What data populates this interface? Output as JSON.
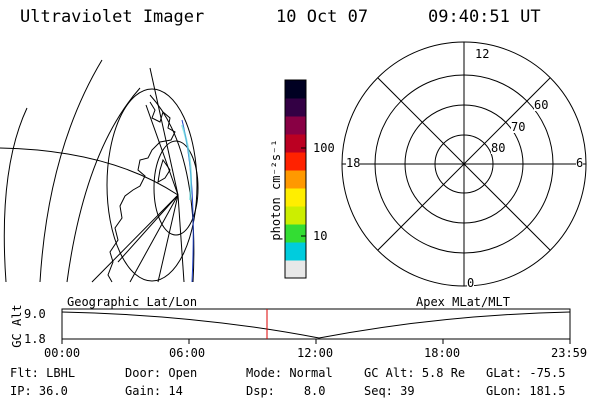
{
  "header": {
    "title": "Ultraviolet Imager",
    "date": "10 Oct 07",
    "time": "09:40:51 UT"
  },
  "colorbar": {
    "unit_label": "photon cm⁻²s⁻¹",
    "tick_labels": [
      "100",
      "10"
    ],
    "tick_values": [
      100,
      10
    ],
    "colors": [
      "#e8e8e8",
      "#00ccdd",
      "#33dd33",
      "#ccee00",
      "#ffee00",
      "#ff9900",
      "#ff2200",
      "#bb0022",
      "#880044",
      "#330044",
      "#000022"
    ]
  },
  "polar_plot": {
    "mlt_labels": {
      "top": "12",
      "left": "18",
      "right": "6",
      "bottom": "0"
    },
    "lat_labels": [
      "60",
      "70",
      "80"
    ]
  },
  "timeline": {
    "ylabel": "GC Alt",
    "left_title": "Geographic Lat/Lon",
    "right_title": "Apex MLat/MLT",
    "y_ticks": [
      "9.0",
      "1.8"
    ],
    "x_ticks": [
      "00:00",
      "06:00",
      "12:00",
      "18:00",
      "23:59"
    ],
    "current_time_hours": 9.68
  },
  "info": {
    "filter": {
      "label": "Flt:",
      "value": "LBHL"
    },
    "door": {
      "label": "Door:",
      "value": "Open"
    },
    "mode": {
      "label": "Mode:",
      "value": "Normal"
    },
    "gc_alt": {
      "label": "GC Alt:",
      "value": "5.8 Re"
    },
    "glat": {
      "label": "GLat:",
      "value": "-75.5"
    },
    "ip": {
      "label": "IP:",
      "value": "36.0"
    },
    "gain": {
      "label": "Gain:",
      "value": "14"
    },
    "dsp": {
      "label": "Dsp:",
      "value": "8.0"
    },
    "seq": {
      "label": "Seq:",
      "value": "39"
    },
    "glon": {
      "label": "GLon:",
      "value": "181.5"
    }
  }
}
